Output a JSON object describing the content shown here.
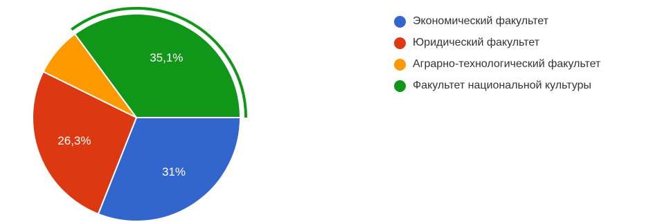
{
  "chart_data": {
    "type": "pie",
    "slices": [
      {
        "label": "Экономический факультет",
        "value": 31,
        "value_label": "31%",
        "color": "#3366cc"
      },
      {
        "label": "Юридический факультет",
        "value": 26.3,
        "value_label": "26,3%",
        "color": "#dc3912"
      },
      {
        "label": "Аграрно-технологический факультет",
        "value": 7.6,
        "value_label": "",
        "color": "#ff9900"
      },
      {
        "label": "Факультет национальной культуры",
        "value": 35.1,
        "value_label": "35,1%",
        "color": "#109618"
      }
    ],
    "highlighted_slice": "Факультет национальной культуры",
    "legend_position": "right"
  }
}
